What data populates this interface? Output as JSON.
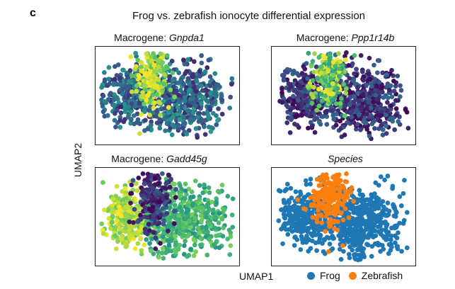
{
  "panel_letter": "c",
  "chart_data": {
    "type": "scatter",
    "title": "Frog vs. zebrafish ionocyte differential expression",
    "xlabel": "UMAP1",
    "ylabel": "UMAP2",
    "grid": false,
    "legend": {
      "placement": "bottom-right",
      "entries": [
        {
          "label": "Frog",
          "color": "#1f77b4"
        },
        {
          "label": "Zebrafish",
          "color": "#ff7f0e"
        }
      ]
    },
    "subplots": [
      {
        "title_prefix": "Macrogene: ",
        "gene": "Gnpda1",
        "color_by": "expression",
        "colormap": "viridis",
        "high_expression_in": "Zebrafish"
      },
      {
        "title_prefix": "Macrogene: ",
        "gene": "Ppp1r14b",
        "color_by": "expression",
        "colormap": "viridis",
        "high_expression_in": "Zebrafish"
      },
      {
        "title_prefix": "Macrogene: ",
        "gene": "Gadd45g",
        "color_by": "expression",
        "colormap": "viridis",
        "high_expression_in": "Frog"
      },
      {
        "title_prefix": "",
        "gene": "Species",
        "color_by": "species",
        "colormap": "categorical"
      }
    ]
  }
}
